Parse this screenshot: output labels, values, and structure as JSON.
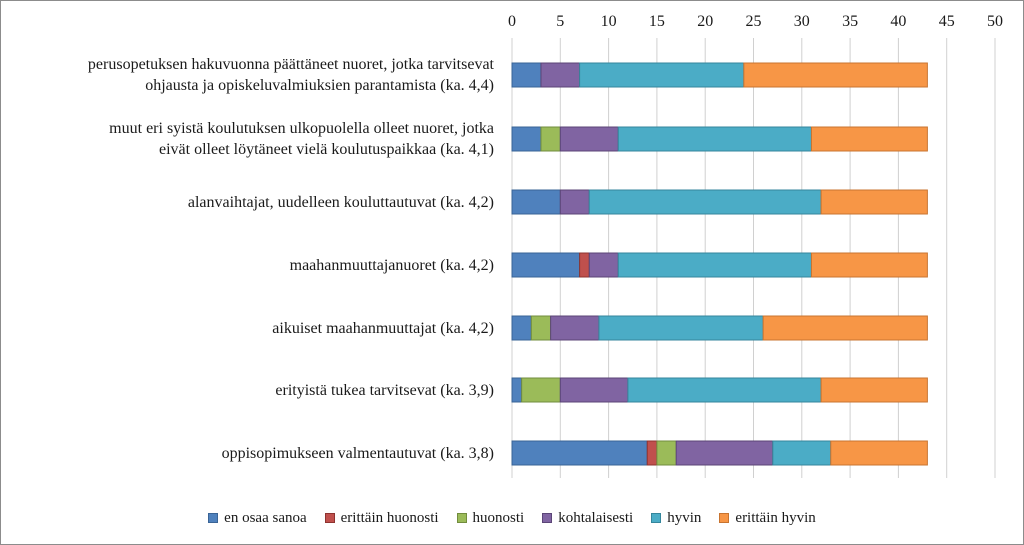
{
  "chart_data": {
    "type": "bar",
    "orientation": "horizontal",
    "stacked": true,
    "categories": [
      "perusopetuksen hakuvuonna päättäneet nuoret, jotka tarvitsevat ohjausta ja opiskeluvalmiuksien parantamista (ka. 4,4)",
      "muut eri syistä koulutuksen ulkopuolella olleet nuoret, jotka eivät olleet löytäneet vielä koulutuspaikkaa (ka. 4,1)",
      "alanvaihtajat, uudelleen kouluttautuvat (ka. 4,2)",
      "maahanmuuttajanuoret (ka. 4,2)",
      "aikuiset maahanmuuttajat (ka. 4,2)",
      "erityistä tukea tarvitsevat (ka. 3,9)",
      "oppisopimukseen valmentautuvat (ka. 3,8)"
    ],
    "category_lines": [
      [
        "perusopetuksen hakuvuonna päättäneet nuoret, jotka tarvitsevat",
        "ohjausta ja opiskeluvalmiuksien parantamista (ka. 4,4)"
      ],
      [
        "muut eri syistä koulutuksen ulkopuolella olleet nuoret, jotka",
        "eivät olleet löytäneet vielä koulutuspaikkaa (ka. 4,1)"
      ],
      [
        "alanvaihtajat, uudelleen kouluttautuvat (ka. 4,2)"
      ],
      [
        "maahanmuuttajanuoret (ka. 4,2)"
      ],
      [
        "aikuiset maahanmuuttajat (ka. 4,2)"
      ],
      [
        "erityistä tukea tarvitsevat (ka. 3,9)"
      ],
      [
        "oppisopimukseen valmentautuvat (ka. 3,8)"
      ]
    ],
    "series": [
      {
        "name": "en osaa sanoa",
        "color": "#4f81bd",
        "border": "#3a6496",
        "values": [
          3,
          3,
          5,
          7,
          2,
          1,
          14
        ]
      },
      {
        "name": "erittäin huonosti",
        "color": "#c0504d",
        "border": "#8e3330",
        "values": [
          0,
          0,
          0,
          1,
          0,
          0,
          1
        ]
      },
      {
        "name": "huonosti",
        "color": "#9bbb59",
        "border": "#728c3e",
        "values": [
          0,
          2,
          0,
          0,
          2,
          4,
          2
        ]
      },
      {
        "name": "kohtalaisesti",
        "color": "#8064a2",
        "border": "#5b4577",
        "values": [
          4,
          6,
          3,
          3,
          5,
          7,
          10
        ]
      },
      {
        "name": "hyvin",
        "color": "#4bacc6",
        "border": "#35869c",
        "values": [
          17,
          20,
          24,
          20,
          17,
          20,
          6
        ]
      },
      {
        "name": "erittäin hyvin",
        "color": "#f79646",
        "border": "#c87430",
        "values": [
          19,
          12,
          11,
          12,
          17,
          11,
          10
        ]
      }
    ],
    "xlim": [
      0,
      50
    ],
    "xticks": [
      0,
      5,
      10,
      15,
      20,
      25,
      30,
      35,
      40,
      45,
      50
    ],
    "x_axis_position": "top",
    "grid": true,
    "legend_position": "bottom",
    "title": "",
    "xlabel": "",
    "ylabel": ""
  }
}
